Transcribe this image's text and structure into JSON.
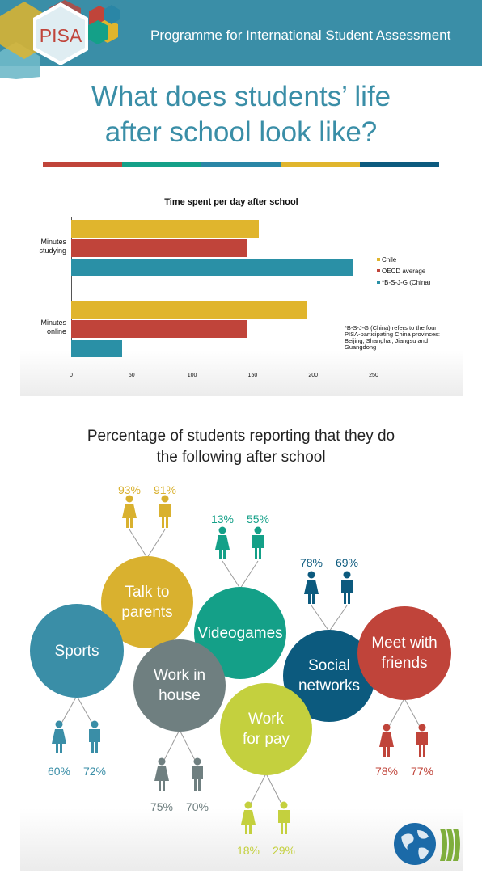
{
  "header": {
    "logo_text": "PISA",
    "title": "Programme for International Student Assessment",
    "color": "#3a8ea7"
  },
  "main_title": {
    "line1": "What does students’ life",
    "line2": "after school look like?"
  },
  "strip_colors": [
    "#c0443a",
    "#14a088",
    "#2a86a6",
    "#e0b52d",
    "#0c5a7e"
  ],
  "chart_data": {
    "type": "bar",
    "orientation": "horizontal",
    "title": "Time spent per day after school",
    "categories": [
      "Minutes studying",
      "Minutes online"
    ],
    "series": [
      {
        "name": "Chile",
        "values": [
          155,
          195
        ],
        "color": "#e0b52d"
      },
      {
        "name": "OECD average",
        "values": [
          146,
          146
        ],
        "color": "#c0443a"
      },
      {
        "name": "*B-S-J-G (China)",
        "values": [
          233,
          42
        ],
        "color": "#2a90a6"
      }
    ],
    "xlim": [
      0,
      250
    ],
    "xticks": [
      "0",
      "50",
      "100",
      "150",
      "200",
      "250"
    ],
    "legend_position": "right",
    "note": "*B-S-J-G (China) refers to the four PISA-participating China provinces: Beijing, Shanghai, Jiangsu and Guangdong",
    "grid": false
  },
  "activities_section": {
    "title_line1": "Percentage of students reporting that they do",
    "title_line2": "the following after school",
    "activities": [
      {
        "id": "talk",
        "label_lines": [
          "Talk to",
          "parents"
        ],
        "female": "93%",
        "male": "91%",
        "color": "#d9b12f"
      },
      {
        "id": "video",
        "label_lines": [
          "Videogames"
        ],
        "female": "13%",
        "male": "55%",
        "color": "#14a088"
      },
      {
        "id": "social",
        "label_lines": [
          "Social",
          "networks"
        ],
        "female": "78%",
        "male": "69%",
        "color": "#0c5a7e"
      },
      {
        "id": "sports",
        "label_lines": [
          "Sports"
        ],
        "female": "60%",
        "male": "72%",
        "color": "#3a8ea7"
      },
      {
        "id": "house",
        "label_lines": [
          "Work in",
          "house"
        ],
        "female": "75%",
        "male": "70%",
        "color": "#6f7f80"
      },
      {
        "id": "pay",
        "label_lines": [
          "Work",
          "for pay"
        ],
        "female": "18%",
        "male": "29%",
        "color": "#c4d03e"
      },
      {
        "id": "friends",
        "label_lines": [
          "Meet with",
          "friends"
        ],
        "female": "78%",
        "male": "77%",
        "color": "#c0443a"
      }
    ]
  },
  "icons": {
    "logo": "pisa-hexagon-logo",
    "org_logo": "globe-oecd-logo",
    "female": "female-person-icon",
    "male": "male-person-icon"
  }
}
